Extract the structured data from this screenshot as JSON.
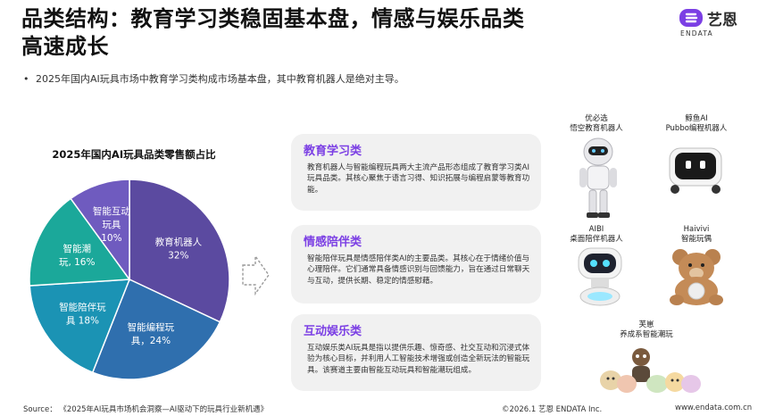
{
  "header": {
    "title_line1": "品类结构：教育学习类稳固基本盘，情感与娱乐品类",
    "title_line2": "高速成长",
    "logo_name": "艺恩",
    "logo_sub": "ENDATA"
  },
  "bullet": {
    "marker": "•",
    "text": "2025年国内AI玩具市场中教育学习类构成市场基本盘，其中教育机器人是绝对主导。"
  },
  "chart_data": {
    "type": "pie",
    "title": "2025年国内AI玩具品类零售额占比",
    "unit": "%",
    "slices": [
      {
        "label_line1": "教育机器人",
        "label_line2": "32%",
        "value": 32,
        "color": "#5b4aa0"
      },
      {
        "label_line1": "智能编程玩",
        "label_line2": "具，24%",
        "value": 24,
        "color": "#2f6fae"
      },
      {
        "label_line1": "智能陪伴玩",
        "label_line2": "具 18%",
        "value": 18,
        "color": "#1b93b4"
      },
      {
        "label_line1": "智能潮",
        "label_line2": "玩, 16%",
        "value": 16,
        "color": "#1ba89a"
      },
      {
        "label_line1": "智能互动",
        "label_line2": "玩具",
        "label_line3": "10%",
        "value": 10,
        "color": "#6f5bbf"
      }
    ]
  },
  "cards": [
    {
      "heading": "教育学习类",
      "body": "教育机器人与智能编程玩具两大主流产品形态组成了教育学习类AI玩具品类。其核心聚焦于语言习得、知识拓展与编程启蒙等教育功能。"
    },
    {
      "heading": "情感陪伴类",
      "body": "智能陪伴玩具是情感陪伴类AI的主要品类。其核心在于情绪价值与心理陪伴。它们通常具备情感识别与回馈能力，旨在通过日常聊天与互动，提供长期、稳定的情感慰藉。"
    },
    {
      "heading": "互动娱乐类",
      "body": "互动娱乐类AI玩具是指以提供乐趣、惊奇感、社交互动和沉浸式体验为核心目标，并利用人工智能技术增强或创造全新玩法的智能玩具。该赛道主要由智能互动玩具和智能潮玩组成。"
    }
  ],
  "products": [
    {
      "line1": "优必选",
      "line2": "悟空教育机器人"
    },
    {
      "line1": "鲸鱼AI",
      "line2": "Pubbo编程机器人"
    },
    {
      "line1": "AIBI",
      "line2": "桌面陪伴机器人"
    },
    {
      "line1": "Haivivi",
      "line2": "智能玩偶"
    },
    {
      "line1": "芙崽",
      "line2": "养成系智能潮玩"
    }
  ],
  "footer": {
    "source": "Source：  《2025年AI玩具市场机会洞察—AI驱动下的玩具行业新机遇》",
    "copyright": "©2026.1  艺恩 ENDATA Inc.",
    "website": "www.endata.com.cn"
  },
  "colors": {
    "accent": "#7b3fe4",
    "card_bg": "#f1f1f1"
  }
}
